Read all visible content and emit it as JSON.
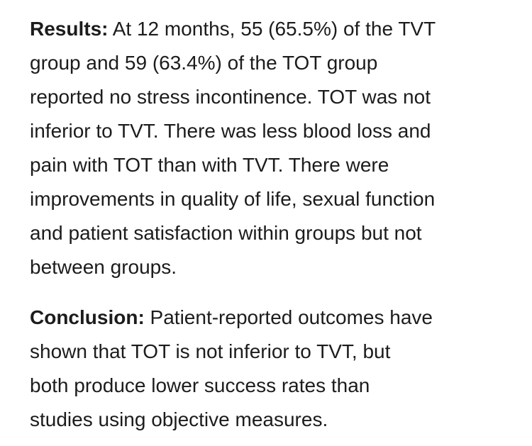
{
  "paragraphs": [
    {
      "label": "Results:",
      "lines": [
        "At 12 months, 55 (65.5%) of the TVT",
        "group and 59 (63.4%) of the TOT group",
        "reported no stress incontinence. TOT was not",
        "inferior to TVT. There was less blood loss and",
        "pain with TOT than with TVT. There were",
        "improvements in quality of life, sexual function",
        "and patient satisfaction within groups but not",
        "between groups."
      ]
    },
    {
      "label": "Conclusion:",
      "lines": [
        "Patient-reported outcomes have",
        "shown that TOT is not inferior to TVT, but",
        "both produce lower success rates than",
        "studies using objective measures."
      ]
    }
  ]
}
